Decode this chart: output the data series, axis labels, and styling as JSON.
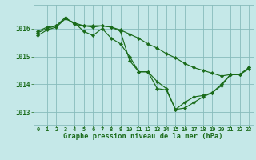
{
  "title": "Graphe pression niveau de la mer (hPa)",
  "bg_color": "#c5e8e8",
  "grid_color": "#88bbbb",
  "line_color": "#1a6b1a",
  "xlim": [
    -0.5,
    23.5
  ],
  "ylim": [
    1012.55,
    1016.85
  ],
  "yticks": [
    1013,
    1014,
    1015,
    1016
  ],
  "xticks": [
    0,
    1,
    2,
    3,
    4,
    5,
    6,
    7,
    8,
    9,
    10,
    11,
    12,
    13,
    14,
    15,
    16,
    17,
    18,
    19,
    20,
    21,
    22,
    23
  ],
  "line1_x": [
    0,
    1,
    2,
    3,
    4,
    5,
    6,
    7,
    8,
    9,
    10,
    11,
    12,
    13,
    14,
    15,
    16,
    17,
    18,
    19,
    20,
    21,
    22,
    23
  ],
  "line1_y": [
    1015.9,
    1016.05,
    1016.1,
    1016.35,
    1016.2,
    1016.1,
    1016.1,
    1016.1,
    1016.05,
    1015.95,
    1015.8,
    1015.65,
    1015.45,
    1015.3,
    1015.1,
    1014.95,
    1014.75,
    1014.6,
    1014.5,
    1014.4,
    1014.3,
    1014.35,
    1014.35,
    1014.55
  ],
  "line2_x": [
    0,
    1,
    2,
    3,
    4,
    5,
    6,
    7,
    8,
    9,
    10,
    11,
    12,
    13,
    14,
    15,
    16,
    17,
    18,
    19,
    20,
    21,
    22,
    23
  ],
  "line2_y": [
    1015.75,
    1015.95,
    1016.05,
    1016.35,
    1016.2,
    1015.9,
    1015.75,
    1016.0,
    1015.65,
    1015.45,
    1015.0,
    1014.45,
    1014.45,
    1013.85,
    1013.8,
    1013.1,
    1013.35,
    1013.55,
    1013.6,
    1013.7,
    1013.95,
    1014.35,
    1014.35,
    1014.6
  ],
  "line3_x": [
    0,
    1,
    2,
    3,
    4,
    5,
    6,
    7,
    8,
    9,
    10,
    11,
    12,
    13,
    14,
    15,
    16,
    17,
    18,
    19,
    20,
    21,
    22,
    23
  ],
  "line3_y": [
    1015.85,
    1016.0,
    1016.1,
    1016.4,
    1016.15,
    1016.1,
    1016.05,
    1016.1,
    1016.05,
    1015.9,
    1014.85,
    1014.45,
    1014.45,
    1014.1,
    1013.85,
    1013.1,
    1013.15,
    1013.35,
    1013.55,
    1013.7,
    1014.0,
    1014.35,
    1014.35,
    1014.6
  ]
}
